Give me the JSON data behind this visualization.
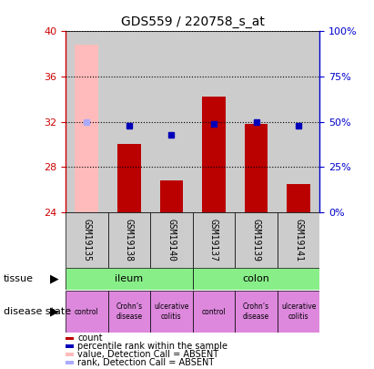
{
  "title": "GDS559 / 220758_s_at",
  "samples": [
    "GSM19135",
    "GSM19138",
    "GSM19140",
    "GSM19137",
    "GSM19139",
    "GSM19141"
  ],
  "ylim": [
    24,
    40
  ],
  "yticks": [
    24,
    28,
    32,
    36,
    40
  ],
  "y2lim": [
    0,
    100
  ],
  "y2ticks": [
    0,
    25,
    50,
    75,
    100
  ],
  "y2ticklabels": [
    "0%",
    "25%",
    "50%",
    "75%",
    "100%"
  ],
  "bar_values": [
    null,
    30.0,
    26.8,
    34.2,
    31.8,
    26.5
  ],
  "bar_color": "#bb0000",
  "absent_bar_value": 38.8,
  "absent_bar_color": "#ffbbbb",
  "percentile_values_pct": [
    50.0,
    48.0,
    43.0,
    49.0,
    50.0,
    48.0
  ],
  "percentile_color_present": "#0000bb",
  "percentile_color_absent": "#aaaaff",
  "absent_sample_index": 0,
  "tissue_color": "#88ee88",
  "disease_color": "#dd88dd",
  "legend_items": [
    {
      "label": "count",
      "color": "#bb0000"
    },
    {
      "label": "percentile rank within the sample",
      "color": "#0000bb"
    },
    {
      "label": "value, Detection Call = ABSENT",
      "color": "#ffbbbb"
    },
    {
      "label": "rank, Detection Call = ABSENT",
      "color": "#aaaaff"
    }
  ],
  "left_color": "#cc0000",
  "right_color": "#0000cc",
  "background_color": "#ffffff",
  "sample_bg_color": "#cccccc",
  "grid_color": "black"
}
